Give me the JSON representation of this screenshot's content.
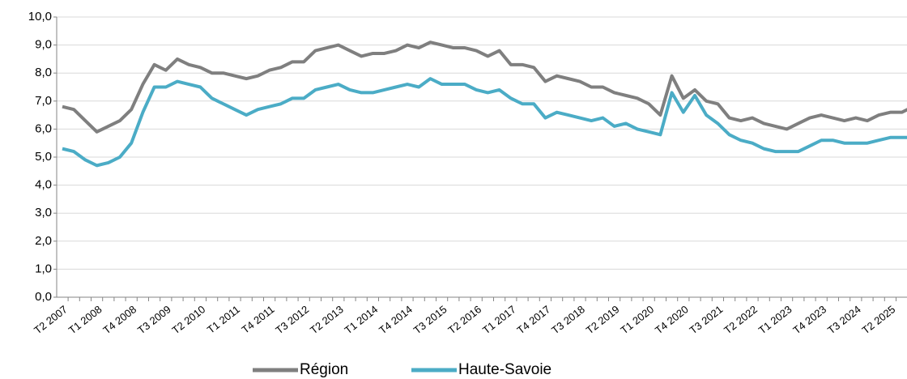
{
  "chart_data": {
    "type": "line",
    "categories": [
      "T2 2007",
      null,
      null,
      "T1 2008",
      null,
      null,
      "T4 2008",
      null,
      null,
      "T3 2009",
      null,
      null,
      "T2 2010",
      null,
      null,
      "T1 2011",
      null,
      null,
      "T4 2011",
      null,
      null,
      "T3 2012",
      null,
      null,
      "T2 2013",
      null,
      null,
      "T1 2014",
      null,
      null,
      "T4 2014",
      null,
      null,
      "T3 2015",
      null,
      null,
      "T2 2016",
      null,
      null,
      "T1 2017",
      null,
      null,
      "T4 2017",
      null,
      null,
      "T3 2018",
      null,
      null,
      "T2 2019",
      null,
      null,
      "T1 2020",
      null,
      null,
      "T4 2020",
      null,
      null,
      "T3 2021",
      null,
      null,
      "T2 2022",
      null,
      null,
      "T1 2023",
      null,
      null,
      "T4 2023",
      null,
      null,
      "T3 2024",
      null,
      null,
      "T2 2025",
      null,
      null
    ],
    "series": [
      {
        "name": "Région",
        "color": "#7f7f7f",
        "values": [
          6.8,
          6.7,
          6.3,
          5.9,
          6.1,
          6.3,
          6.7,
          7.6,
          8.3,
          8.1,
          8.5,
          8.3,
          8.2,
          8.0,
          8.0,
          7.9,
          7.8,
          7.9,
          8.1,
          8.2,
          8.4,
          8.4,
          8.8,
          8.9,
          9.0,
          8.8,
          8.6,
          8.7,
          8.7,
          8.8,
          9.0,
          8.9,
          9.1,
          9.0,
          8.9,
          8.9,
          8.8,
          8.6,
          8.8,
          8.3,
          8.3,
          8.2,
          7.7,
          7.9,
          7.8,
          7.7,
          7.5,
          7.5,
          7.3,
          7.2,
          7.1,
          6.9,
          6.5,
          7.9,
          7.1,
          7.4,
          7.0,
          6.9,
          6.4,
          6.3,
          6.4,
          6.2,
          6.1,
          6.0,
          6.2,
          6.4,
          6.5,
          6.4,
          6.3,
          6.4,
          6.3,
          6.5,
          6.6,
          6.6,
          6.8
        ]
      },
      {
        "name": "Haute-Savoie",
        "color": "#4bacc6",
        "values": [
          5.3,
          5.2,
          4.9,
          4.7,
          4.8,
          5.0,
          5.5,
          6.6,
          7.5,
          7.5,
          7.7,
          7.6,
          7.5,
          7.1,
          6.9,
          6.7,
          6.5,
          6.7,
          6.8,
          6.9,
          7.1,
          7.1,
          7.4,
          7.5,
          7.6,
          7.4,
          7.3,
          7.3,
          7.4,
          7.5,
          7.6,
          7.5,
          7.8,
          7.6,
          7.6,
          7.6,
          7.4,
          7.3,
          7.4,
          7.1,
          6.9,
          6.9,
          6.4,
          6.6,
          6.5,
          6.4,
          6.3,
          6.4,
          6.1,
          6.2,
          6.0,
          5.9,
          5.8,
          7.3,
          6.6,
          7.2,
          6.5,
          6.2,
          5.8,
          5.6,
          5.5,
          5.3,
          5.2,
          5.2,
          5.2,
          5.4,
          5.6,
          5.6,
          5.5,
          5.5,
          5.5,
          5.6,
          5.7,
          5.7,
          5.7
        ]
      }
    ],
    "ylim": [
      0,
      10
    ],
    "yticks": [
      {
        "value": 0,
        "label": "0,0"
      },
      {
        "value": 1,
        "label": "1,0"
      },
      {
        "value": 2,
        "label": "2,0"
      },
      {
        "value": 3,
        "label": "3,0"
      },
      {
        "value": 4,
        "label": "4,0"
      },
      {
        "value": 5,
        "label": "5,0"
      },
      {
        "value": 6,
        "label": "6,0"
      },
      {
        "value": 7,
        "label": "7,0"
      },
      {
        "value": 8,
        "label": "8,0"
      },
      {
        "value": 9,
        "label": "9,0"
      },
      {
        "value": 10,
        "label": "10,0"
      }
    ],
    "grid": true,
    "legend": "bottom"
  }
}
